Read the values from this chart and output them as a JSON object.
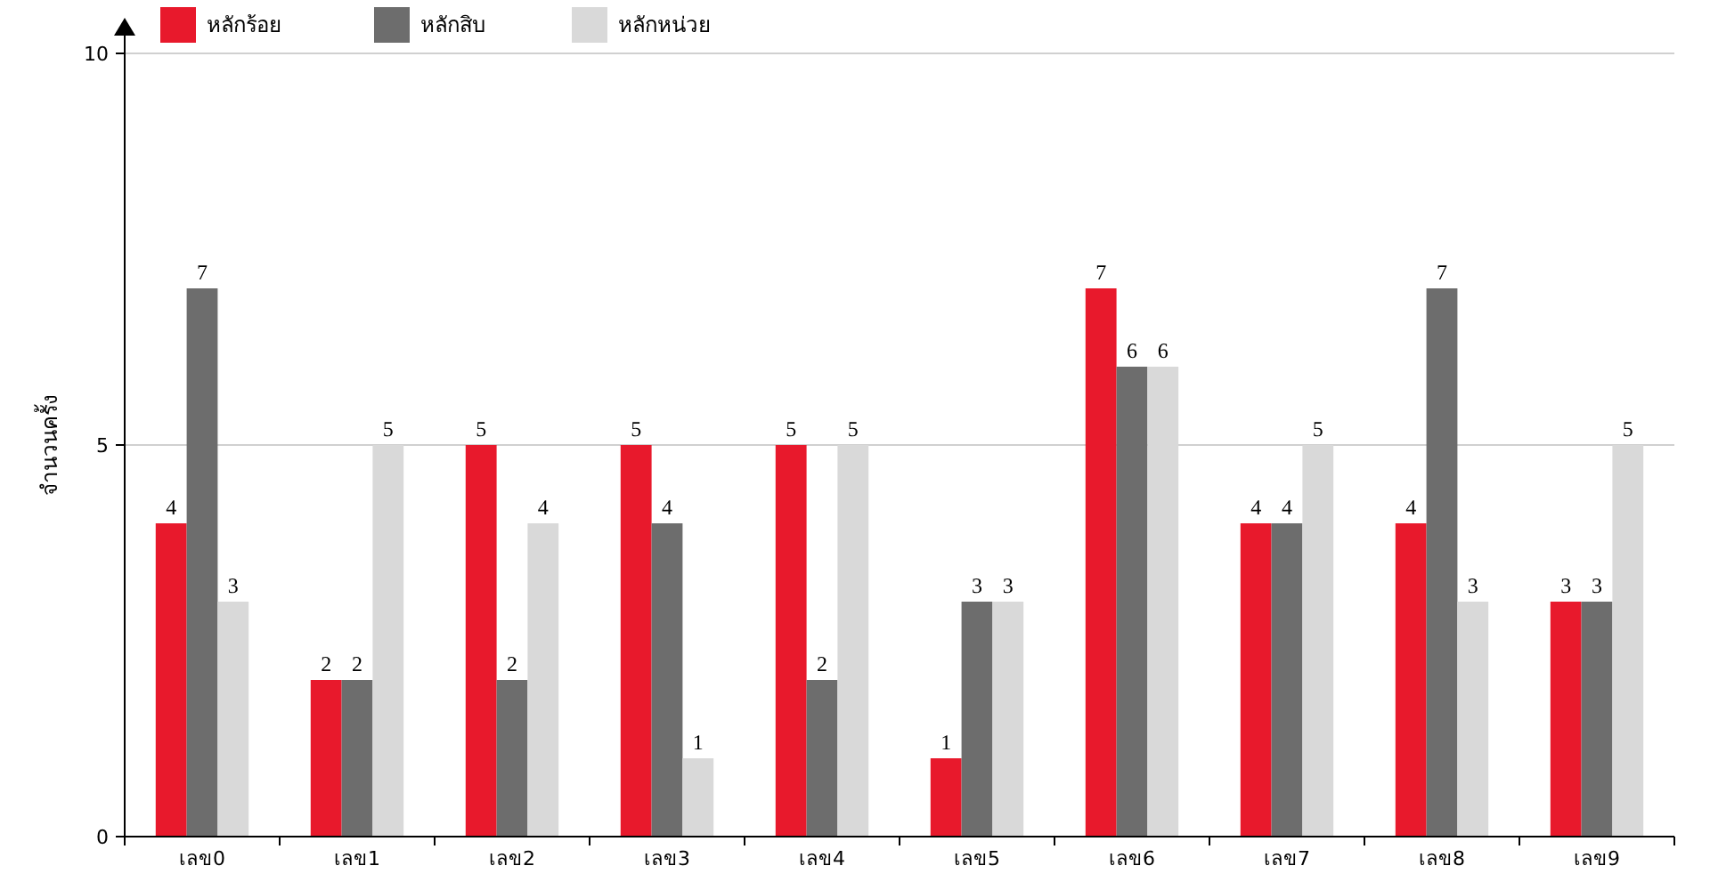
{
  "chart_data": {
    "type": "bar",
    "ylabel": "จำนวนครั้ง",
    "categories": [
      "เลข0",
      "เลข1",
      "เลข2",
      "เลข3",
      "เลข4",
      "เลข5",
      "เลข6",
      "เลข7",
      "เลข8",
      "เลข9"
    ],
    "series": [
      {
        "name": "หลักร้อย",
        "color": "#e8192c",
        "values": [
          4,
          2,
          5,
          5,
          5,
          1,
          7,
          4,
          4,
          3
        ]
      },
      {
        "name": "หลักสิบ",
        "color": "#6d6d6d",
        "values": [
          7,
          2,
          2,
          4,
          2,
          3,
          6,
          4,
          7,
          3
        ]
      },
      {
        "name": "หลักหน่วย",
        "color": "#d9d9d9",
        "values": [
          3,
          5,
          4,
          1,
          5,
          3,
          6,
          5,
          3,
          5
        ]
      }
    ],
    "ylim": [
      0,
      10
    ],
    "yticks": [
      0,
      5,
      10
    ],
    "grid": "y",
    "legend": "top left",
    "data_labels": true
  }
}
